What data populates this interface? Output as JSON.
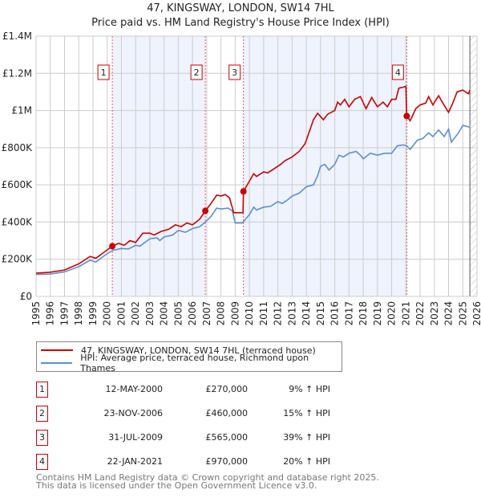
{
  "title": "47, KINGSWAY, LONDON, SW14 7HL",
  "subtitle": "Price paid vs. HM Land Registry's House Price Index (HPI)",
  "colors": {
    "property": "#cc0000",
    "hpi": "#5b8fd4",
    "band": "#eef3fd",
    "marker_border": "#cc0000"
  },
  "chart_data": {
    "type": "line",
    "title": "47, KINGSWAY, LONDON, SW14 7HL",
    "xlim": [
      1995,
      2026
    ],
    "ylim": [
      0,
      1400000
    ],
    "y_ticks": [
      {
        "v": 0,
        "label": "£0"
      },
      {
        "v": 200000,
        "label": "£200K"
      },
      {
        "v": 400000,
        "label": "£400K"
      },
      {
        "v": 600000,
        "label": "£600K"
      },
      {
        "v": 800000,
        "label": "£800K"
      },
      {
        "v": 1000000,
        "label": "£1M"
      },
      {
        "v": 1200000,
        "label": "£1.2M"
      },
      {
        "v": 1400000,
        "label": "£1.4M"
      }
    ],
    "x_ticks": [
      "1995",
      "1996",
      "1997",
      "1998",
      "1999",
      "2000",
      "2001",
      "2002",
      "2003",
      "2004",
      "2005",
      "2006",
      "2007",
      "2008",
      "2009",
      "2010",
      "2011",
      "2012",
      "2013",
      "2014",
      "2015",
      "2016",
      "2017",
      "2018",
      "2019",
      "2020",
      "2021",
      "2022",
      "2023",
      "2024",
      "2025",
      "2026"
    ],
    "grid": true,
    "forecast_hatch_from": 2025.5,
    "bands": [
      [
        2000.36,
        2006.9
      ],
      [
        2009.58,
        2021.06
      ]
    ],
    "series": [
      {
        "name": "47, KINGSWAY, LONDON, SW14 7HL (terraced house)",
        "color": "#cc0000",
        "x": [
          1995,
          1996,
          1997,
          1998,
          1998.8,
          1999.2,
          2000,
          2000.36,
          2000.8,
          2001.2,
          2001.6,
          2002,
          2002.5,
          2003,
          2003.3,
          2003.8,
          2004.3,
          2004.8,
          2005.2,
          2005.6,
          2006,
          2006.5,
          2006.9,
          2007.3,
          2007.7,
          2008,
          2008.3,
          2008.6,
          2008.9,
          2009.4,
          2009.55,
          2009.58,
          2010,
          2010.3,
          2010.5,
          2011,
          2011.3,
          2011.8,
          2012.2,
          2012.5,
          2013,
          2013.5,
          2013.9,
          2014,
          2014.5,
          2014.8,
          2015.2,
          2015.5,
          2016,
          2016.2,
          2016.4,
          2016.7,
          2017,
          2017.4,
          2017.8,
          2018.2,
          2018.6,
          2019,
          2019.4,
          2019.7,
          2020,
          2020.3,
          2020.5,
          2020.8,
          2021.0,
          2021.06,
          2021.3,
          2021.7,
          2022,
          2022.4,
          2022.6,
          2022.9,
          2023.3,
          2023.6,
          2024,
          2024.3,
          2024.6,
          2025,
          2025.4,
          2025.5
        ],
        "y": [
          125,
          130,
          142,
          175,
          215,
          205,
          250,
          270,
          285,
          275,
          300,
          290,
          340,
          340,
          330,
          350,
          360,
          385,
          375,
          395,
          385,
          415,
          460,
          500,
          545,
          540,
          548,
          530,
          450,
          450,
          450,
          565,
          620,
          660,
          645,
          670,
          665,
          690,
          710,
          730,
          750,
          780,
          820,
          840,
          950,
          985,
          950,
          980,
          1000,
          1045,
          1030,
          1060,
          1020,
          1060,
          1075,
          1010,
          1070,
          1020,
          1045,
          1020,
          1060,
          1060,
          1120,
          1125,
          1130,
          970,
          945,
          1010,
          1030,
          1040,
          1075,
          1030,
          1080,
          1040,
          990,
          1040,
          1100,
          1110,
          1090,
          1110
        ],
        "y_unit": "thousand GBP"
      },
      {
        "name": "HPI: Average price, terraced house, Richmond upon Thames",
        "color": "#5b8fd4",
        "x": [
          1995,
          1996,
          1997,
          1998,
          1998.8,
          1999.2,
          2000,
          2000.4,
          2001,
          2001.5,
          2002,
          2002.3,
          2003,
          2003.5,
          2003.7,
          2004,
          2004.6,
          2005,
          2005.5,
          2006,
          2006.5,
          2006.9,
          2007.3,
          2007.7,
          2008,
          2008.5,
          2008.8,
          2009,
          2009.5,
          2010,
          2010.3,
          2010.5,
          2011,
          2011.5,
          2012,
          2012.3,
          2012.7,
          2013,
          2013.5,
          2014,
          2014.5,
          2014.8,
          2015,
          2015.3,
          2015.6,
          2016,
          2016.3,
          2016.6,
          2017,
          2017.5,
          2017.8,
          2018,
          2018.5,
          2019,
          2019.5,
          2020,
          2020.4,
          2020.8,
          2021.06,
          2021.3,
          2021.8,
          2022.2,
          2022.6,
          2022.9,
          2023.3,
          2023.7,
          2024,
          2024.2,
          2024.7,
          2025,
          2025.5
        ],
        "y": [
          118,
          120,
          132,
          160,
          195,
          185,
          230,
          248,
          258,
          255,
          275,
          270,
          310,
          315,
          300,
          320,
          330,
          355,
          345,
          365,
          375,
          400,
          430,
          475,
          470,
          475,
          460,
          395,
          395,
          440,
          480,
          465,
          480,
          485,
          510,
          500,
          520,
          540,
          555,
          590,
          600,
          650,
          700,
          710,
          680,
          710,
          760,
          750,
          770,
          780,
          760,
          740,
          770,
          760,
          770,
          770,
          810,
          815,
          810,
          790,
          840,
          850,
          880,
          860,
          895,
          860,
          900,
          830,
          880,
          920,
          910
        ],
        "y_unit": "thousand GBP"
      }
    ],
    "sales": [
      {
        "id": "1",
        "x": 2000.36,
        "price": 270
      },
      {
        "id": "2",
        "x": 2006.9,
        "price": 460
      },
      {
        "id": "3",
        "x": 2009.58,
        "price": 565
      },
      {
        "id": "4",
        "x": 2021.06,
        "price": 970
      }
    ]
  },
  "legend": {
    "property": "47, KINGSWAY, LONDON, SW14 7HL (terraced house)",
    "hpi": "HPI: Average price, terraced house, Richmond upon Thames"
  },
  "transactions": [
    {
      "num": "1",
      "date": "12-MAY-2000",
      "price": "£270,000",
      "hpi": "9% ↑ HPI"
    },
    {
      "num": "2",
      "date": "23-NOV-2006",
      "price": "£460,000",
      "hpi": "15% ↑ HPI"
    },
    {
      "num": "3",
      "date": "31-JUL-2009",
      "price": "£565,000",
      "hpi": "39% ↑ HPI"
    },
    {
      "num": "4",
      "date": "22-JAN-2021",
      "price": "£970,000",
      "hpi": "20% ↑ HPI"
    }
  ],
  "footer": {
    "line1": "Contains HM Land Registry data © Crown copyright and database right 2025.",
    "line2": "This data is licensed under the Open Government Licence v3.0."
  }
}
